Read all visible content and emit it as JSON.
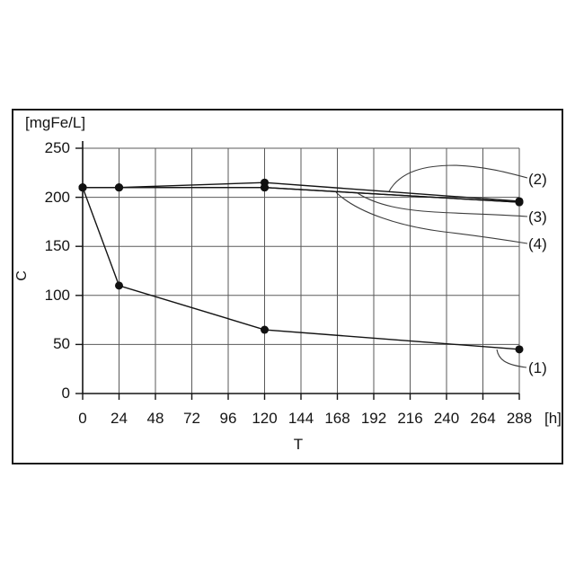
{
  "colors": {
    "line": "#141414",
    "grid": "#5a5a5a",
    "axis": "#141414",
    "callout": "#3c3c3c",
    "marker": "#111111",
    "frame": "#1a1a1a",
    "background": "#ffffff"
  },
  "chart_data": {
    "type": "line",
    "title": "",
    "xlabel": "T",
    "x_unit": "[h]",
    "ylabel": "C",
    "y_unit": "[mgFe/L]",
    "xlim": [
      0,
      288
    ],
    "ylim": [
      0,
      250
    ],
    "x_ticks": [
      0,
      24,
      48,
      72,
      96,
      120,
      144,
      168,
      192,
      216,
      240,
      264,
      288
    ],
    "y_ticks": [
      0,
      50,
      100,
      150,
      200,
      250
    ],
    "grid": true,
    "legend_position": "right-callout-labels",
    "marker_style": "filled-circle",
    "series": [
      {
        "name": "(2)",
        "x": [
          0,
          24,
          120,
          288
        ],
        "y": [
          210,
          210,
          215,
          196
        ]
      },
      {
        "name": "(3)",
        "x": [
          0,
          24,
          120,
          288
        ],
        "y": [
          210,
          210,
          210,
          195
        ]
      },
      {
        "name": "(4)",
        "x": [
          0,
          24,
          120,
          288
        ],
        "y": [
          210,
          210,
          210,
          195
        ]
      },
      {
        "name": "(1)",
        "x": [
          0,
          24,
          120,
          288
        ],
        "y": [
          210,
          110,
          65,
          45
        ]
      }
    ]
  }
}
